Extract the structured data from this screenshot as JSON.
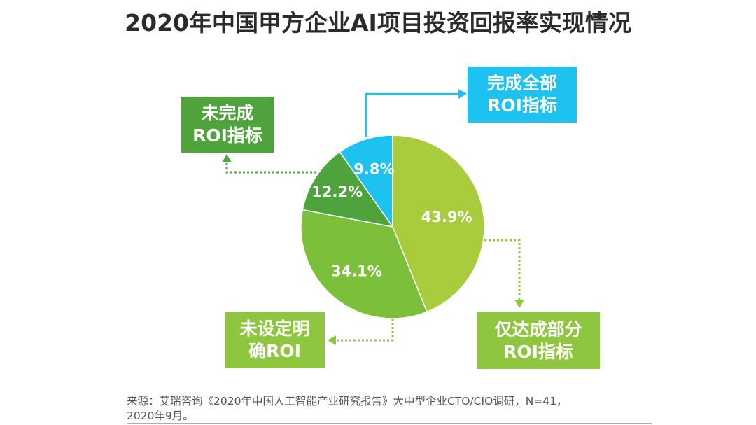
{
  "title": "2020年中国甲方企业AI项目投资回报率实现情况",
  "chart_data": {
    "type": "pie",
    "title": "2020年中国甲方企业AI项目投资回报率实现情况",
    "slices": [
      {
        "label_line1": "完成全部",
        "label_line2": "ROI指标",
        "value": 9.8,
        "display": "9.8%",
        "color": "#1DC2F0"
      },
      {
        "label_line1": "仅达成部分",
        "label_line2": "ROI指标",
        "value": 43.9,
        "display": "43.9%",
        "color": "#A8CC3C"
      },
      {
        "label_line1": "未设定明",
        "label_line2": "确ROI",
        "value": 34.1,
        "display": "34.1%",
        "color": "#7CBF3A"
      },
      {
        "label_line1": "未完成",
        "label_line2": "ROI指标",
        "value": 12.2,
        "display": "12.2%",
        "color": "#4EA33C"
      }
    ],
    "box_colors": {
      "cyan": "#1DC2F0",
      "light_green": "#8FC63F",
      "green": "#4EA33C"
    }
  },
  "source": {
    "line1": "来源：艾瑞咨询《2020年中国人工智能产业研究报告》大中型企业CTO/CIO调研，N=41，",
    "line2": "2020年9月。"
  }
}
